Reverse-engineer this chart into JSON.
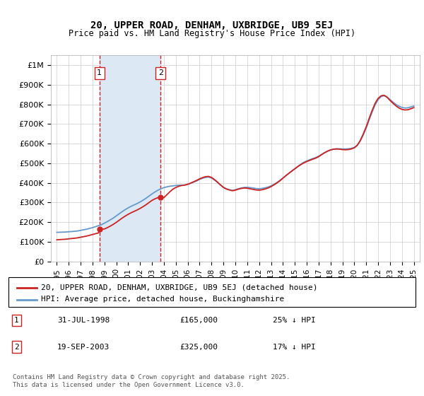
{
  "title": "20, UPPER ROAD, DENHAM, UXBRIDGE, UB9 5EJ",
  "subtitle": "Price paid vs. HM Land Registry's House Price Index (HPI)",
  "ylabel": "",
  "xlabel": "",
  "background_color": "#ffffff",
  "plot_bg_color": "#ffffff",
  "grid_color": "#cccccc",
  "hpi_color": "#6699cc",
  "price_color": "#cc2222",
  "shaded_color": "#dce9f5",
  "purchase1_date": 1998.58,
  "purchase1_price": 165000,
  "purchase2_date": 2003.72,
  "purchase2_price": 325000,
  "ylim": [
    0,
    1050000
  ],
  "xlim": [
    1994.5,
    2025.5
  ],
  "yticks": [
    0,
    100000,
    200000,
    300000,
    400000,
    500000,
    600000,
    700000,
    800000,
    900000,
    1000000
  ],
  "ytick_labels": [
    "£0",
    "£100K",
    "£200K",
    "£300K",
    "£400K",
    "£500K",
    "£600K",
    "£700K",
    "£800K",
    "£900K",
    "£1M"
  ],
  "xticks": [
    1995,
    1996,
    1997,
    1998,
    1999,
    2000,
    2001,
    2002,
    2003,
    2004,
    2005,
    2006,
    2007,
    2008,
    2009,
    2010,
    2011,
    2012,
    2013,
    2014,
    2015,
    2016,
    2017,
    2018,
    2019,
    2020,
    2021,
    2022,
    2023,
    2024,
    2025
  ],
  "legend1_label": "20, UPPER ROAD, DENHAM, UXBRIDGE, UB9 5EJ (detached house)",
  "legend2_label": "HPI: Average price, detached house, Buckinghamshire",
  "table_rows": [
    [
      "1",
      "31-JUL-1998",
      "£165,000",
      "25% ↓ HPI"
    ],
    [
      "2",
      "19-SEP-2003",
      "£325,000",
      "17% ↓ HPI"
    ]
  ],
  "footnote": "Contains HM Land Registry data © Crown copyright and database right 2025.\nThis data is licensed under the Open Government Licence v3.0.",
  "hpi_years": [
    1995.0,
    1995.25,
    1995.5,
    1995.75,
    1996.0,
    1996.25,
    1996.5,
    1996.75,
    1997.0,
    1997.25,
    1997.5,
    1997.75,
    1998.0,
    1998.25,
    1998.5,
    1998.75,
    1999.0,
    1999.25,
    1999.5,
    1999.75,
    2000.0,
    2000.25,
    2000.5,
    2000.75,
    2001.0,
    2001.25,
    2001.5,
    2001.75,
    2002.0,
    2002.25,
    2002.5,
    2002.75,
    2003.0,
    2003.25,
    2003.5,
    2003.75,
    2004.0,
    2004.25,
    2004.5,
    2004.75,
    2005.0,
    2005.25,
    2005.5,
    2005.75,
    2006.0,
    2006.25,
    2006.5,
    2006.75,
    2007.0,
    2007.25,
    2007.5,
    2007.75,
    2008.0,
    2008.25,
    2008.5,
    2008.75,
    2009.0,
    2009.25,
    2009.5,
    2009.75,
    2010.0,
    2010.25,
    2010.5,
    2010.75,
    2011.0,
    2011.25,
    2011.5,
    2011.75,
    2012.0,
    2012.25,
    2012.5,
    2012.75,
    2013.0,
    2013.25,
    2013.5,
    2013.75,
    2014.0,
    2014.25,
    2014.5,
    2014.75,
    2015.0,
    2015.25,
    2015.5,
    2015.75,
    2016.0,
    2016.25,
    2016.5,
    2016.75,
    2017.0,
    2017.25,
    2017.5,
    2017.75,
    2018.0,
    2018.25,
    2018.5,
    2018.75,
    2019.0,
    2019.25,
    2019.5,
    2019.75,
    2020.0,
    2020.25,
    2020.5,
    2020.75,
    2021.0,
    2021.25,
    2021.5,
    2021.75,
    2022.0,
    2022.25,
    2022.5,
    2022.75,
    2023.0,
    2023.25,
    2023.5,
    2023.75,
    2024.0,
    2024.25,
    2024.5,
    2024.75,
    2025.0
  ],
  "hpi_values": [
    148000,
    148500,
    149000,
    149500,
    151000,
    152000,
    153500,
    155000,
    158000,
    161000,
    164000,
    168000,
    172000,
    177000,
    182000,
    187000,
    195000,
    203000,
    212000,
    221000,
    232000,
    243000,
    254000,
    264000,
    273000,
    281000,
    288000,
    295000,
    303000,
    312000,
    322000,
    333000,
    344000,
    354000,
    363000,
    370000,
    376000,
    380000,
    383000,
    385000,
    387000,
    388000,
    388500,
    389000,
    393000,
    398000,
    404000,
    410000,
    418000,
    424000,
    428000,
    430000,
    425000,
    415000,
    403000,
    390000,
    378000,
    370000,
    365000,
    362000,
    365000,
    370000,
    374000,
    377000,
    378000,
    376000,
    374000,
    371000,
    370000,
    372000,
    375000,
    379000,
    385000,
    393000,
    402000,
    413000,
    425000,
    437000,
    449000,
    460000,
    472000,
    484000,
    495000,
    505000,
    512000,
    518000,
    524000,
    529000,
    536000,
    545000,
    554000,
    562000,
    568000,
    572000,
    574000,
    574000,
    573000,
    573000,
    574000,
    576000,
    581000,
    592000,
    614000,
    645000,
    680000,
    722000,
    762000,
    798000,
    825000,
    840000,
    845000,
    838000,
    825000,
    812000,
    800000,
    791000,
    785000,
    782000,
    783000,
    787000,
    792000
  ],
  "price_years": [
    1995.0,
    1995.25,
    1995.5,
    1995.75,
    1996.0,
    1996.25,
    1996.5,
    1996.75,
    1997.0,
    1997.25,
    1997.5,
    1997.75,
    1998.0,
    1998.25,
    1998.5,
    1998.58,
    1999.0,
    1999.25,
    1999.5,
    1999.75,
    2000.0,
    2000.25,
    2000.5,
    2000.75,
    2001.0,
    2001.25,
    2001.5,
    2001.75,
    2002.0,
    2002.25,
    2002.5,
    2002.75,
    2003.0,
    2003.25,
    2003.5,
    2003.72,
    2004.0,
    2004.25,
    2004.5,
    2004.75,
    2005.0,
    2005.25,
    2005.5,
    2005.75,
    2006.0,
    2006.25,
    2006.5,
    2006.75,
    2007.0,
    2007.25,
    2007.5,
    2007.75,
    2008.0,
    2008.25,
    2008.5,
    2008.75,
    2009.0,
    2009.25,
    2009.5,
    2009.75,
    2010.0,
    2010.25,
    2010.5,
    2010.75,
    2011.0,
    2011.25,
    2011.5,
    2011.75,
    2012.0,
    2012.25,
    2012.5,
    2012.75,
    2013.0,
    2013.25,
    2013.5,
    2013.75,
    2014.0,
    2014.25,
    2014.5,
    2014.75,
    2015.0,
    2015.25,
    2015.5,
    2015.75,
    2016.0,
    2016.25,
    2016.5,
    2016.75,
    2017.0,
    2017.25,
    2017.5,
    2017.75,
    2018.0,
    2018.25,
    2018.5,
    2018.75,
    2019.0,
    2019.25,
    2019.5,
    2019.75,
    2020.0,
    2020.25,
    2020.5,
    2020.75,
    2021.0,
    2021.25,
    2021.5,
    2021.75,
    2022.0,
    2022.25,
    2022.5,
    2022.75,
    2023.0,
    2023.25,
    2023.5,
    2023.75,
    2024.0,
    2024.25,
    2024.5,
    2024.75,
    2025.0
  ],
  "price_values": [
    110000,
    111000,
    112000,
    113000,
    115000,
    116500,
    118000,
    120000,
    123000,
    126000,
    129000,
    133000,
    137000,
    141000,
    145000,
    165000,
    165000,
    172000,
    180000,
    189000,
    199000,
    210000,
    221000,
    231000,
    240000,
    248000,
    255000,
    262000,
    270000,
    279000,
    289000,
    300000,
    311000,
    319000,
    325000,
    325000,
    325000,
    340000,
    355000,
    368000,
    377000,
    383000,
    387000,
    389000,
    393000,
    399000,
    406000,
    413000,
    421000,
    427000,
    432000,
    433000,
    428000,
    417000,
    404000,
    390000,
    377000,
    369000,
    364000,
    360000,
    363000,
    368000,
    372000,
    374000,
    373000,
    370000,
    367000,
    364000,
    363000,
    365000,
    369000,
    374000,
    381000,
    390000,
    400000,
    411000,
    424000,
    437000,
    449000,
    461000,
    472000,
    483000,
    493000,
    502000,
    509000,
    515000,
    521000,
    526000,
    534000,
    544000,
    554000,
    562000,
    568000,
    572000,
    573000,
    572000,
    570000,
    569000,
    570000,
    573000,
    579000,
    592000,
    616000,
    649000,
    686000,
    729000,
    770000,
    806000,
    831000,
    844000,
    847000,
    837000,
    821000,
    806000,
    793000,
    782000,
    775000,
    772000,
    773000,
    778000,
    784000
  ]
}
